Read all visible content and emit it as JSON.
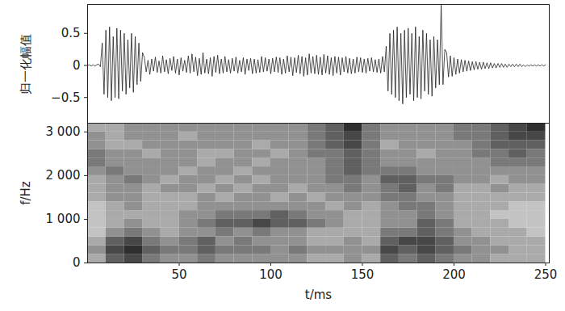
{
  "chart_data": [
    {
      "type": "line",
      "ylabel": "归一化幅值",
      "xlim": [
        0,
        252
      ],
      "ylim": [
        -0.9,
        0.95
      ],
      "yticks": [
        0.5,
        0,
        {
          "value": -0.5,
          "label": "−0.5"
        }
      ],
      "tick_labels": "y",
      "grid": false,
      "series": [
        {
          "name": null,
          "color": "#222222",
          "x": [
            0,
            1,
            2,
            3,
            4,
            5,
            6,
            7,
            8,
            9,
            10,
            11,
            12,
            13,
            14,
            15,
            16,
            17,
            18,
            19,
            20,
            21,
            22,
            23,
            24,
            25,
            26,
            27,
            28,
            29,
            30,
            31,
            32,
            33,
            34,
            35,
            36,
            37,
            38,
            39,
            40,
            41,
            42,
            43,
            44,
            45,
            46,
            47,
            48,
            49,
            50,
            51,
            52,
            53,
            54,
            55,
            56,
            57,
            58,
            59,
            60,
            61,
            62,
            63,
            64,
            65,
            66,
            67,
            68,
            69,
            70,
            71,
            72,
            73,
            74,
            75,
            76,
            77,
            78,
            79,
            80,
            81,
            82,
            83,
            84,
            85,
            86,
            87,
            88,
            89,
            90,
            91,
            92,
            93,
            94,
            95,
            96,
            97,
            98,
            99,
            100,
            101,
            102,
            103,
            104,
            105,
            106,
            107,
            108,
            109,
            110,
            111,
            112,
            113,
            114,
            115,
            116,
            117,
            118,
            119,
            120,
            121,
            122,
            123,
            124,
            125,
            126,
            127,
            128,
            129,
            130,
            131,
            132,
            133,
            134,
            135,
            136,
            137,
            138,
            139,
            140,
            141,
            142,
            143,
            144,
            145,
            146,
            147,
            148,
            149,
            150,
            151,
            152,
            153,
            154,
            155,
            156,
            157,
            158,
            159,
            160,
            161,
            162,
            163,
            164,
            165,
            166,
            167,
            168,
            169,
            170,
            171,
            172,
            173,
            174,
            175,
            176,
            177,
            178,
            179,
            180,
            181,
            182,
            183,
            184,
            185,
            186,
            187,
            188,
            189,
            190,
            191,
            192,
            193,
            194,
            195,
            196,
            197,
            198,
            199,
            200,
            201,
            202,
            203,
            204,
            205,
            206,
            207,
            208,
            209,
            210,
            211,
            212,
            213,
            214,
            215,
            216,
            217,
            218,
            219,
            220,
            221,
            222,
            223,
            224,
            225,
            226,
            227,
            228,
            229,
            230,
            231,
            232,
            233,
            234,
            235,
            236,
            237,
            238,
            239,
            240,
            241,
            242,
            243,
            244,
            245,
            246,
            247,
            248,
            249,
            250
          ],
          "values": [
            0,
            0.01,
            -0.01,
            0.01,
            -0.01,
            0.01,
            0.02,
            -0.02,
            0.35,
            -0.45,
            0.55,
            -0.5,
            0.6,
            -0.55,
            0.45,
            -0.5,
            0.58,
            -0.52,
            0.55,
            -0.4,
            0.5,
            -0.45,
            0.4,
            -0.35,
            0.5,
            -0.42,
            0.45,
            -0.3,
            0.35,
            -0.25,
            0.2,
            0.12,
            -0.1,
            0.08,
            -0.14,
            0.1,
            -0.09,
            0.13,
            -0.11,
            0.07,
            -0.12,
            0.15,
            -0.1,
            0.09,
            -0.13,
            0.11,
            -0.08,
            0.14,
            -0.12,
            0.1,
            -0.15,
            0.12,
            -0.09,
            0.08,
            -0.11,
            0.15,
            -0.12,
            0.18,
            -0.1,
            0.13,
            -0.16,
            0.11,
            -0.14,
            0.2,
            -0.12,
            0.1,
            -0.13,
            0.12,
            -0.17,
            0.14,
            -0.11,
            0.16,
            -0.13,
            0.1,
            -0.12,
            0.14,
            -0.1,
            0.09,
            -0.12,
            0.11,
            -0.09,
            0.13,
            -0.12,
            0.08,
            -0.1,
            0.12,
            -0.14,
            0.1,
            -0.08,
            0.11,
            -0.13,
            0.1,
            -0.12,
            0.09,
            -0.11,
            0.14,
            -0.1,
            0.12,
            -0.09,
            0.1,
            -0.13,
            0.11,
            -0.1,
            0.13,
            -0.11,
            0.12,
            -0.14,
            0.1,
            -0.12,
            0.15,
            -0.1,
            0.13,
            -0.16,
            0.12,
            -0.11,
            0.16,
            -0.13,
            0.14,
            -0.17,
            0.12,
            -0.15,
            0.18,
            -0.12,
            0.14,
            -0.13,
            0.16,
            -0.14,
            0.13,
            -0.15,
            0.17,
            -0.12,
            0.15,
            -0.14,
            0.12,
            -0.16,
            0.14,
            -0.12,
            0.13,
            -0.15,
            0.12,
            -0.1,
            0.14,
            -0.12,
            0.11,
            -0.13,
            0.1,
            -0.12,
            0.13,
            -0.1,
            0.12,
            -0.11,
            0.1,
            -0.12,
            0.11,
            -0.09,
            0.12,
            -0.1,
            0.09,
            -0.11,
            0.1,
            -0.12,
            0.14,
            -0.1,
            0.3,
            -0.4,
            0.5,
            -0.45,
            0.55,
            -0.5,
            0.6,
            -0.55,
            0.5,
            -0.6,
            0.55,
            -0.5,
            0.58,
            -0.45,
            0.5,
            -0.55,
            0.6,
            -0.5,
            0.45,
            -0.52,
            0.55,
            -0.4,
            0.5,
            -0.45,
            0.4,
            -0.48,
            0.45,
            -0.35,
            0.4,
            -0.3,
            0.94,
            -0.3,
            0.25,
            0.2,
            -0.18,
            0.15,
            -0.17,
            0.12,
            -0.14,
            0.1,
            -0.12,
            0.09,
            -0.1,
            0.08,
            -0.09,
            0.07,
            -0.08,
            0.06,
            -0.07,
            0.06,
            -0.06,
            0.05,
            -0.06,
            0.05,
            -0.05,
            0.04,
            -0.05,
            0.04,
            -0.04,
            0.03,
            -0.04,
            0.03,
            -0.03,
            0.03,
            -0.03,
            0.02,
            -0.03,
            0.02,
            -0.02,
            0.02,
            -0.02,
            0.02,
            -0.02,
            0.02,
            -0.02,
            0.01,
            -0.02,
            0.01,
            -0.01,
            0.01,
            -0.01,
            0.01,
            -0.01,
            0.01,
            -0.01,
            0.01,
            -0.01,
            0.01
          ]
        }
      ]
    },
    {
      "type": "heatmap",
      "xlabel": "t/ms",
      "ylabel": "f/Hz",
      "xlim": [
        0,
        252
      ],
      "ylim": [
        0,
        3200
      ],
      "xticks": [
        50,
        100,
        150,
        200,
        250
      ],
      "yticks": [
        0,
        {
          "value": 1000,
          "label": "1 000"
        },
        {
          "value": 2000,
          "label": "2 000"
        },
        {
          "value": 3000,
          "label": "3 000"
        }
      ],
      "grid": false,
      "x_edges": [
        0,
        10,
        20,
        30,
        40,
        50,
        60,
        70,
        80,
        90,
        100,
        110,
        120,
        130,
        140,
        150,
        160,
        170,
        180,
        190,
        200,
        210,
        220,
        230,
        240,
        250
      ],
      "y_edges": [
        0,
        200,
        400,
        600,
        800,
        1000,
        1200,
        1400,
        1600,
        1800,
        2000,
        2200,
        2400,
        2600,
        2800,
        3000,
        3200
      ],
      "zlim": [
        0,
        9
      ],
      "cells": [
        [
          3,
          6,
          7,
          5,
          4,
          4,
          5,
          4,
          4,
          4,
          4,
          4,
          3,
          3,
          4,
          3,
          6,
          5,
          6,
          5,
          4,
          4,
          3,
          3,
          3
        ],
        [
          4,
          7,
          8,
          6,
          5,
          5,
          6,
          5,
          5,
          5,
          4,
          5,
          4,
          4,
          4,
          4,
          7,
          6,
          7,
          6,
          5,
          4,
          4,
          3,
          3
        ],
        [
          3,
          6,
          7,
          5,
          4,
          5,
          6,
          4,
          5,
          4,
          4,
          4,
          3,
          3,
          4,
          3,
          6,
          7,
          7,
          6,
          4,
          4,
          3,
          3,
          3
        ],
        [
          2,
          4,
          5,
          4,
          3,
          4,
          4,
          5,
          4,
          5,
          4,
          4,
          3,
          3,
          3,
          3,
          5,
          5,
          6,
          5,
          4,
          3,
          3,
          3,
          2
        ],
        [
          2,
          3,
          4,
          3,
          3,
          4,
          5,
          6,
          6,
          7,
          6,
          6,
          5,
          4,
          3,
          3,
          4,
          4,
          6,
          5,
          3,
          3,
          3,
          2,
          2
        ],
        [
          2,
          3,
          3,
          3,
          3,
          4,
          4,
          5,
          5,
          5,
          6,
          5,
          4,
          4,
          3,
          3,
          4,
          4,
          5,
          4,
          3,
          3,
          2,
          2,
          2
        ],
        [
          2,
          3,
          4,
          3,
          3,
          3,
          4,
          4,
          4,
          4,
          4,
          4,
          4,
          3,
          4,
          3,
          4,
          5,
          5,
          4,
          3,
          3,
          3,
          2,
          2
        ],
        [
          3,
          4,
          4,
          3,
          3,
          3,
          4,
          3,
          4,
          4,
          3,
          4,
          3,
          4,
          4,
          4,
          5,
          5,
          4,
          4,
          3,
          3,
          3,
          3,
          3
        ],
        [
          3,
          4,
          4,
          3,
          4,
          4,
          3,
          4,
          3,
          4,
          4,
          3,
          4,
          4,
          5,
          4,
          5,
          6,
          4,
          5,
          3,
          3,
          4,
          3,
          3
        ],
        [
          3,
          4,
          5,
          4,
          3,
          4,
          4,
          3,
          4,
          3,
          4,
          4,
          4,
          5,
          5,
          4,
          6,
          6,
          5,
          5,
          4,
          4,
          3,
          4,
          4
        ],
        [
          4,
          5,
          4,
          4,
          4,
          3,
          4,
          4,
          3,
          4,
          4,
          4,
          4,
          5,
          6,
          5,
          5,
          5,
          4,
          4,
          4,
          4,
          4,
          4,
          4
        ],
        [
          5,
          4,
          4,
          4,
          4,
          4,
          3,
          4,
          4,
          3,
          4,
          4,
          4,
          5,
          6,
          5,
          4,
          4,
          4,
          4,
          4,
          4,
          5,
          5,
          5
        ],
        [
          5,
          4,
          4,
          3,
          4,
          4,
          3,
          3,
          4,
          4,
          3,
          4,
          5,
          5,
          6,
          5,
          4,
          4,
          3,
          4,
          4,
          5,
          5,
          6,
          5
        ],
        [
          4,
          3,
          3,
          4,
          4,
          4,
          4,
          4,
          4,
          3,
          4,
          4,
          5,
          6,
          7,
          5,
          3,
          4,
          4,
          4,
          4,
          5,
          6,
          6,
          6
        ],
        [
          4,
          3,
          4,
          4,
          4,
          3,
          4,
          4,
          4,
          4,
          4,
          4,
          5,
          6,
          7,
          5,
          4,
          4,
          4,
          4,
          5,
          5,
          6,
          7,
          7
        ],
        [
          3,
          3,
          4,
          4,
          4,
          4,
          4,
          4,
          4,
          4,
          4,
          4,
          5,
          6,
          8,
          5,
          4,
          4,
          4,
          4,
          5,
          5,
          6,
          7,
          8
        ]
      ]
    }
  ]
}
